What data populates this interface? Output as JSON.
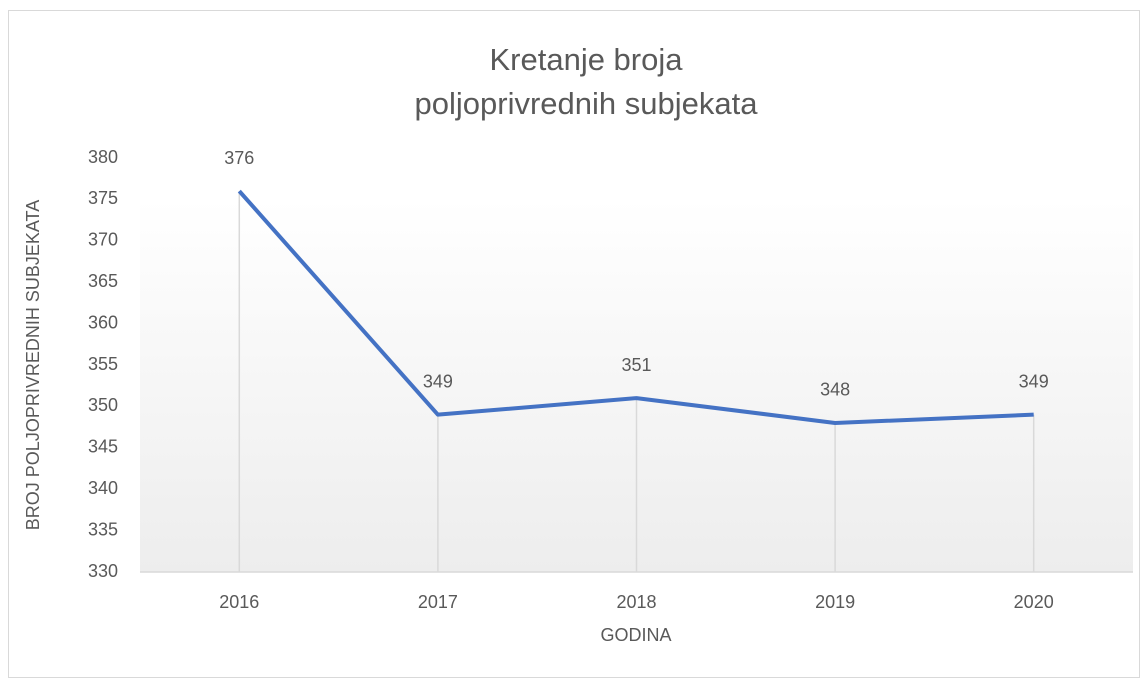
{
  "chart_data": {
    "type": "line",
    "title": [
      "Kretanje broja",
      "poljoprivrednih subjekata"
    ],
    "x_label": "GODINA",
    "y_label": "BROJ POLJOPRIVREDNIH SUBJEKATA",
    "categories": [
      "2016",
      "2017",
      "2018",
      "2019",
      "2020"
    ],
    "values": [
      376,
      349,
      351,
      348,
      349
    ],
    "color": "#4472c4",
    "ylim": [
      330,
      380
    ],
    "yticks": [
      330,
      335,
      340,
      345,
      350,
      355,
      360,
      365,
      370,
      375,
      380
    ],
    "drop_lines": true,
    "data_labels": true
  }
}
